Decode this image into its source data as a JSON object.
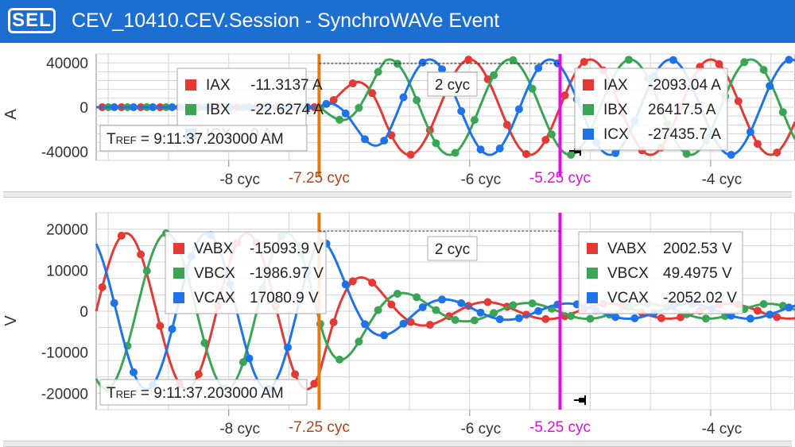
{
  "app": {
    "logo": "SEL",
    "title": "CEV_10410.CEV.Session - SynchroWAVe Event"
  },
  "plots": [
    {
      "id": "current",
      "y_label": "A",
      "y_ticks": [
        "40000",
        "0",
        "-40000"
      ],
      "y_values": [
        40000,
        0,
        -40000
      ],
      "x_ticks": [
        "-8 cyc",
        "-6 cyc",
        "-4 cyc"
      ],
      "cursor_a": {
        "label": "-7.25 cyc",
        "color": "#e07b16"
      },
      "cursor_b": {
        "label": "-5.25 cyc",
        "color": "#e010e0"
      },
      "delta_label": "2 cyc",
      "tref": {
        "prefix": "T",
        "sub": "REF",
        "value": " = 9:11:37.203000 AM"
      },
      "legend_left": [
        {
          "name": "IAX",
          "value": "-11.3137 A",
          "color": "#e53935"
        },
        {
          "name": "IBX",
          "value": "-22.6274 A",
          "color": "#3aa655"
        },
        {
          "name": "ICX",
          "value": "0 A",
          "color": "#1f73e8"
        }
      ],
      "legend_right": [
        {
          "name": "IAX",
          "value": "-2093.04 A",
          "color": "#e53935"
        },
        {
          "name": "IBX",
          "value": "26417.5 A",
          "color": "#3aa655"
        },
        {
          "name": "ICX",
          "value": "-27435.7 A",
          "color": "#1f73e8"
        }
      ]
    },
    {
      "id": "voltage",
      "y_label": "V",
      "y_ticks": [
        "20000",
        "10000",
        "0",
        "-10000",
        "-20000"
      ],
      "y_values": [
        20000,
        10000,
        0,
        -10000,
        -20000
      ],
      "x_ticks": [
        "-8 cyc",
        "-6 cyc",
        "-4 cyc"
      ],
      "cursor_a": {
        "label": "-7.25 cyc",
        "color": "#e07b16"
      },
      "cursor_b": {
        "label": "-5.25 cyc",
        "color": "#e010e0"
      },
      "delta_label": "2 cyc",
      "tref": {
        "prefix": "T",
        "sub": "REF",
        "value": " = 9:11:37.203000 AM"
      },
      "legend_left": [
        {
          "name": "VABX",
          "value": "-15093.9 V",
          "color": "#e53935"
        },
        {
          "name": "VBCX",
          "value": "-1986.97 V",
          "color": "#3aa655"
        },
        {
          "name": "VCAX",
          "value": "17080.9 V",
          "color": "#1f73e8"
        }
      ],
      "legend_right": [
        {
          "name": "VABX",
          "value": "2002.53 V",
          "color": "#e53935"
        },
        {
          "name": "VBCX",
          "value": "49.4975 V",
          "color": "#3aa655"
        },
        {
          "name": "VCAX",
          "value": "-2052.02 V",
          "color": "#1f73e8"
        }
      ]
    }
  ],
  "chart_data": [
    {
      "type": "line",
      "title": "",
      "xlabel": "",
      "ylabel": "A",
      "x_unit": "cyc",
      "xlim": [
        -9.1,
        -3.3
      ],
      "ylim": [
        -48000,
        48000
      ],
      "x_ticks": [
        -8,
        -6,
        -4
      ],
      "y_ticks": [
        40000,
        0,
        -40000
      ],
      "grid": true,
      "series": [
        {
          "name": "IAX",
          "color": "#e53935"
        },
        {
          "name": "IBX",
          "color": "#3aa655"
        },
        {
          "name": "ICX",
          "color": "#1f73e8"
        }
      ],
      "fault_start_cyc": -7.25,
      "peak_amplitude": 43000,
      "cursors": [
        -7.25,
        -5.25
      ]
    },
    {
      "type": "line",
      "title": "",
      "xlabel": "",
      "ylabel": "V",
      "x_unit": "cyc",
      "xlim": [
        -9.1,
        -3.3
      ],
      "ylim": [
        -24000,
        24000
      ],
      "x_ticks": [
        -8,
        -6,
        -4
      ],
      "y_ticks": [
        20000,
        10000,
        0,
        -10000,
        -20000
      ],
      "grid": true,
      "series": [
        {
          "name": "VABX",
          "color": "#e53935"
        },
        {
          "name": "VBCX",
          "color": "#3aa655"
        },
        {
          "name": "VCAX",
          "color": "#1f73e8"
        }
      ],
      "prefault_amplitude": 19000,
      "postfault_amplitude": 1800,
      "fault_start_cyc": -7.25,
      "cursors": [
        -7.25,
        -5.25
      ]
    }
  ]
}
